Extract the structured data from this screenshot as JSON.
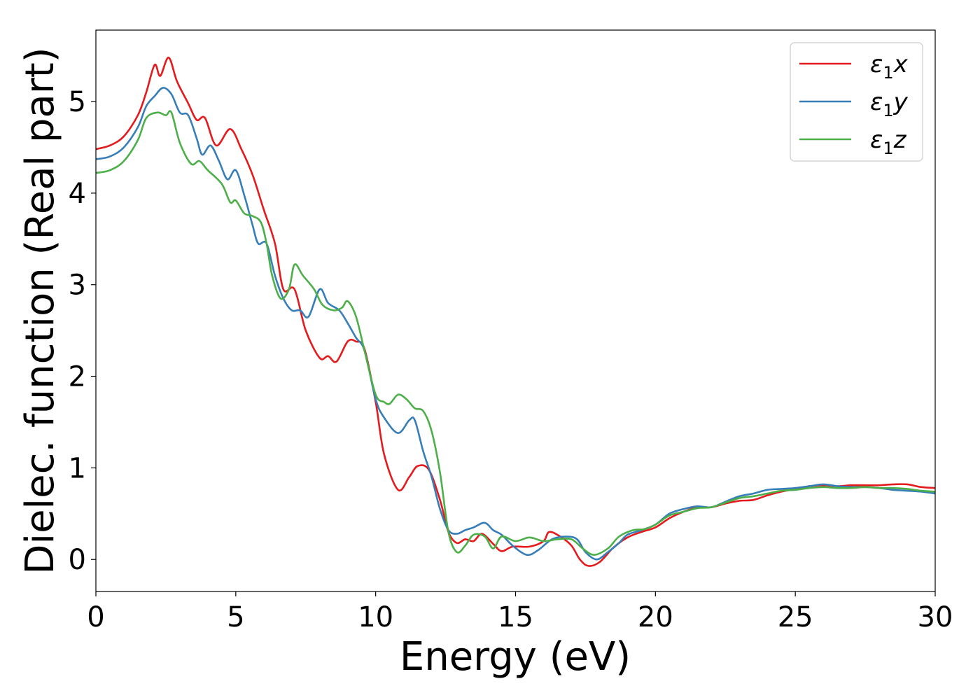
{
  "chart_data": {
    "type": "line",
    "title": "",
    "xlabel": "Energy (eV)",
    "ylabel": "Dielec. function (Real part)",
    "xlim": [
      0,
      30
    ],
    "ylim": [
      -0.35,
      5.78
    ],
    "x_ticks": [
      "0",
      "5",
      "10",
      "15",
      "20",
      "25",
      "30"
    ],
    "y_ticks": [
      "0",
      "1",
      "2",
      "3",
      "4",
      "5"
    ],
    "grid": false,
    "legend_position": "top-right",
    "series": [
      {
        "name": "ε1x",
        "legend": {
          "base": "ε",
          "sub": "1",
          "suffix": "x"
        },
        "color": "#e41a1c",
        "points": [
          [
            0,
            4.48
          ],
          [
            0.5,
            4.52
          ],
          [
            1.0,
            4.62
          ],
          [
            1.5,
            4.85
          ],
          [
            1.8,
            5.1
          ],
          [
            2.1,
            5.4
          ],
          [
            2.3,
            5.28
          ],
          [
            2.6,
            5.48
          ],
          [
            2.9,
            5.22
          ],
          [
            3.3,
            4.98
          ],
          [
            3.6,
            4.8
          ],
          [
            3.9,
            4.82
          ],
          [
            4.3,
            4.52
          ],
          [
            4.8,
            4.7
          ],
          [
            5.2,
            4.48
          ],
          [
            5.6,
            4.2
          ],
          [
            6.0,
            3.82
          ],
          [
            6.4,
            3.45
          ],
          [
            6.7,
            2.95
          ],
          [
            7.1,
            2.95
          ],
          [
            7.5,
            2.5
          ],
          [
            8.0,
            2.2
          ],
          [
            8.3,
            2.22
          ],
          [
            8.6,
            2.16
          ],
          [
            9.0,
            2.38
          ],
          [
            9.3,
            2.38
          ],
          [
            9.6,
            2.3
          ],
          [
            10.0,
            1.72
          ],
          [
            10.3,
            1.15
          ],
          [
            10.8,
            0.76
          ],
          [
            11.2,
            0.9
          ],
          [
            11.5,
            1.02
          ],
          [
            11.9,
            0.98
          ],
          [
            12.3,
            0.65
          ],
          [
            12.6,
            0.3
          ],
          [
            12.9,
            0.18
          ],
          [
            13.2,
            0.22
          ],
          [
            13.5,
            0.2
          ],
          [
            13.8,
            0.28
          ],
          [
            14.2,
            0.17
          ],
          [
            14.5,
            0.09
          ],
          [
            14.9,
            0.14
          ],
          [
            15.5,
            0.14
          ],
          [
            16.0,
            0.2
          ],
          [
            16.2,
            0.3
          ],
          [
            16.6,
            0.25
          ],
          [
            17.0,
            0.15
          ],
          [
            17.3,
            0.0
          ],
          [
            17.6,
            -0.07
          ],
          [
            18.0,
            -0.03
          ],
          [
            18.5,
            0.13
          ],
          [
            19.0,
            0.24
          ],
          [
            19.5,
            0.3
          ],
          [
            20.0,
            0.35
          ],
          [
            20.5,
            0.45
          ],
          [
            21.0,
            0.52
          ],
          [
            21.5,
            0.57
          ],
          [
            22.0,
            0.57
          ],
          [
            22.5,
            0.61
          ],
          [
            23.0,
            0.64
          ],
          [
            23.5,
            0.65
          ],
          [
            24.0,
            0.7
          ],
          [
            24.5,
            0.74
          ],
          [
            25.0,
            0.77
          ],
          [
            25.5,
            0.8
          ],
          [
            26.0,
            0.81
          ],
          [
            26.5,
            0.8
          ],
          [
            27.0,
            0.81
          ],
          [
            27.5,
            0.81
          ],
          [
            28.0,
            0.81
          ],
          [
            28.5,
            0.82
          ],
          [
            29.0,
            0.82
          ],
          [
            29.5,
            0.79
          ],
          [
            30.0,
            0.78
          ]
        ]
      },
      {
        "name": "ε1y",
        "legend": {
          "base": "ε",
          "sub": "1",
          "suffix": "y"
        },
        "color": "#377eb8",
        "points": [
          [
            0,
            4.37
          ],
          [
            0.5,
            4.4
          ],
          [
            1.0,
            4.5
          ],
          [
            1.5,
            4.72
          ],
          [
            1.8,
            4.95
          ],
          [
            2.1,
            5.06
          ],
          [
            2.4,
            5.15
          ],
          [
            2.7,
            5.08
          ],
          [
            3.0,
            4.88
          ],
          [
            3.3,
            4.85
          ],
          [
            3.6,
            4.6
          ],
          [
            3.8,
            4.42
          ],
          [
            4.1,
            4.52
          ],
          [
            4.4,
            4.35
          ],
          [
            4.7,
            4.15
          ],
          [
            5.0,
            4.25
          ],
          [
            5.3,
            3.98
          ],
          [
            5.6,
            3.65
          ],
          [
            5.8,
            3.45
          ],
          [
            6.1,
            3.45
          ],
          [
            6.4,
            3.1
          ],
          [
            6.7,
            2.85
          ],
          [
            7.0,
            2.72
          ],
          [
            7.3,
            2.72
          ],
          [
            7.6,
            2.65
          ],
          [
            8.0,
            2.95
          ],
          [
            8.3,
            2.8
          ],
          [
            8.7,
            2.72
          ],
          [
            9.0,
            2.58
          ],
          [
            9.3,
            2.42
          ],
          [
            9.6,
            2.28
          ],
          [
            10.0,
            1.75
          ],
          [
            10.3,
            1.55
          ],
          [
            10.8,
            1.38
          ],
          [
            11.2,
            1.52
          ],
          [
            11.4,
            1.52
          ],
          [
            11.7,
            1.18
          ],
          [
            12.0,
            0.9
          ],
          [
            12.3,
            0.55
          ],
          [
            12.6,
            0.32
          ],
          [
            12.9,
            0.28
          ],
          [
            13.2,
            0.32
          ],
          [
            13.5,
            0.35
          ],
          [
            13.9,
            0.4
          ],
          [
            14.2,
            0.32
          ],
          [
            14.5,
            0.27
          ],
          [
            14.9,
            0.15
          ],
          [
            15.4,
            0.05
          ],
          [
            15.8,
            0.1
          ],
          [
            16.3,
            0.22
          ],
          [
            16.8,
            0.25
          ],
          [
            17.2,
            0.22
          ],
          [
            17.5,
            0.08
          ],
          [
            17.9,
            0.0
          ],
          [
            18.3,
            0.08
          ],
          [
            18.7,
            0.18
          ],
          [
            19.0,
            0.27
          ],
          [
            19.5,
            0.32
          ],
          [
            20.0,
            0.38
          ],
          [
            20.5,
            0.5
          ],
          [
            21.0,
            0.55
          ],
          [
            21.5,
            0.58
          ],
          [
            22.0,
            0.57
          ],
          [
            22.5,
            0.63
          ],
          [
            23.0,
            0.69
          ],
          [
            23.5,
            0.72
          ],
          [
            24.0,
            0.76
          ],
          [
            24.5,
            0.77
          ],
          [
            25.0,
            0.78
          ],
          [
            25.5,
            0.8
          ],
          [
            26.0,
            0.82
          ],
          [
            26.5,
            0.8
          ],
          [
            27.0,
            0.79
          ],
          [
            27.5,
            0.79
          ],
          [
            28.0,
            0.78
          ],
          [
            28.5,
            0.76
          ],
          [
            29.0,
            0.75
          ],
          [
            29.5,
            0.74
          ],
          [
            30.0,
            0.72
          ]
        ]
      },
      {
        "name": "ε1z",
        "legend": {
          "base": "ε",
          "sub": "1",
          "suffix": "z"
        },
        "color": "#4daf4a",
        "points": [
          [
            0,
            4.22
          ],
          [
            0.5,
            4.25
          ],
          [
            1.0,
            4.35
          ],
          [
            1.5,
            4.58
          ],
          [
            1.8,
            4.82
          ],
          [
            2.2,
            4.88
          ],
          [
            2.5,
            4.85
          ],
          [
            2.7,
            4.88
          ],
          [
            3.0,
            4.55
          ],
          [
            3.4,
            4.32
          ],
          [
            3.7,
            4.35
          ],
          [
            4.0,
            4.25
          ],
          [
            4.5,
            4.1
          ],
          [
            4.8,
            3.9
          ],
          [
            5.0,
            3.92
          ],
          [
            5.3,
            3.78
          ],
          [
            5.6,
            3.75
          ],
          [
            5.9,
            3.68
          ],
          [
            6.1,
            3.45
          ],
          [
            6.3,
            3.1
          ],
          [
            6.6,
            2.85
          ],
          [
            6.9,
            2.95
          ],
          [
            7.1,
            3.22
          ],
          [
            7.4,
            3.1
          ],
          [
            7.8,
            2.95
          ],
          [
            8.1,
            2.78
          ],
          [
            8.5,
            2.72
          ],
          [
            8.8,
            2.75
          ],
          [
            9.0,
            2.82
          ],
          [
            9.3,
            2.65
          ],
          [
            9.6,
            2.28
          ],
          [
            10.0,
            1.8
          ],
          [
            10.3,
            1.72
          ],
          [
            10.5,
            1.7
          ],
          [
            10.8,
            1.8
          ],
          [
            11.1,
            1.75
          ],
          [
            11.4,
            1.65
          ],
          [
            11.7,
            1.62
          ],
          [
            12.0,
            1.4
          ],
          [
            12.3,
            0.95
          ],
          [
            12.6,
            0.3
          ],
          [
            12.9,
            0.08
          ],
          [
            13.2,
            0.15
          ],
          [
            13.5,
            0.27
          ],
          [
            13.9,
            0.25
          ],
          [
            14.2,
            0.12
          ],
          [
            14.5,
            0.25
          ],
          [
            15.0,
            0.2
          ],
          [
            15.5,
            0.24
          ],
          [
            16.0,
            0.2
          ],
          [
            16.5,
            0.22
          ],
          [
            17.0,
            0.22
          ],
          [
            17.4,
            0.12
          ],
          [
            17.8,
            0.05
          ],
          [
            18.3,
            0.12
          ],
          [
            18.7,
            0.25
          ],
          [
            19.2,
            0.32
          ],
          [
            19.6,
            0.33
          ],
          [
            20.0,
            0.38
          ],
          [
            20.5,
            0.48
          ],
          [
            21.0,
            0.52
          ],
          [
            21.5,
            0.56
          ],
          [
            22.0,
            0.57
          ],
          [
            22.5,
            0.62
          ],
          [
            23.0,
            0.67
          ],
          [
            23.5,
            0.69
          ],
          [
            24.0,
            0.72
          ],
          [
            24.5,
            0.75
          ],
          [
            25.0,
            0.76
          ],
          [
            25.5,
            0.78
          ],
          [
            26.0,
            0.79
          ],
          [
            26.5,
            0.78
          ],
          [
            27.0,
            0.78
          ],
          [
            27.5,
            0.79
          ],
          [
            28.0,
            0.78
          ],
          [
            28.5,
            0.78
          ],
          [
            29.0,
            0.77
          ],
          [
            29.5,
            0.75
          ],
          [
            30.0,
            0.74
          ]
        ]
      }
    ]
  }
}
